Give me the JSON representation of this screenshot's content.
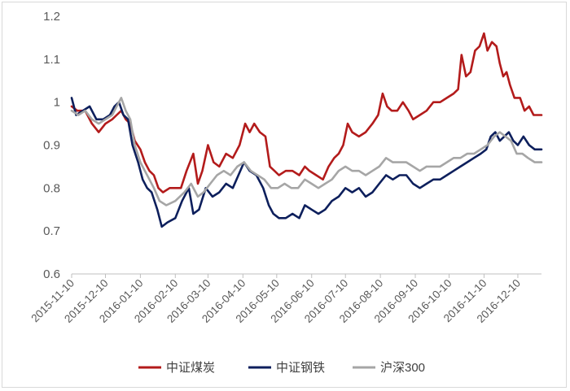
{
  "chart_data": {
    "type": "line",
    "title": "",
    "xlabel": "",
    "ylabel": "",
    "ylim": [
      0.6,
      1.2
    ],
    "yticks": [
      "0.6",
      "0.7",
      "0.8",
      "0.9",
      "1",
      "1.1",
      "1.2"
    ],
    "x_tick_labels": [
      "2015-11-10",
      "2015-12-10",
      "2016-01-10",
      "2016-02-10",
      "2016-03-10",
      "2016-04-10",
      "2016-05-10",
      "2016-06-10",
      "2016-07-10",
      "2016-08-10",
      "2016-09-10",
      "2016-10-10",
      "2016-11-10",
      "2016-12-10"
    ],
    "x_range": [
      "2015-11-10",
      "2016-12-31"
    ],
    "grid": "none",
    "legend_position": "bottom",
    "series": [
      {
        "name": "中证煤炭",
        "color": "#b31b1b",
        "points": [
          [
            "2015-11-10",
            0.99
          ],
          [
            "2015-11-15",
            0.98
          ],
          [
            "2015-11-22",
            0.98
          ],
          [
            "2015-11-28",
            0.95
          ],
          [
            "2015-12-04",
            0.93
          ],
          [
            "2015-12-10",
            0.95
          ],
          [
            "2015-12-16",
            0.96
          ],
          [
            "2015-12-20",
            0.97
          ],
          [
            "2015-12-24",
            0.98
          ],
          [
            "2015-12-28",
            0.96
          ],
          [
            "2016-01-01",
            0.95
          ],
          [
            "2016-01-05",
            0.91
          ],
          [
            "2016-01-10",
            0.89
          ],
          [
            "2016-01-14",
            0.86
          ],
          [
            "2016-01-18",
            0.84
          ],
          [
            "2016-01-22",
            0.83
          ],
          [
            "2016-01-26",
            0.8
          ],
          [
            "2016-01-30",
            0.79
          ],
          [
            "2016-02-05",
            0.8
          ],
          [
            "2016-02-15",
            0.8
          ],
          [
            "2016-02-20",
            0.84
          ],
          [
            "2016-02-26",
            0.88
          ],
          [
            "2016-03-01",
            0.81
          ],
          [
            "2016-03-05",
            0.84
          ],
          [
            "2016-03-10",
            0.9
          ],
          [
            "2016-03-15",
            0.86
          ],
          [
            "2016-03-20",
            0.85
          ],
          [
            "2016-03-26",
            0.88
          ],
          [
            "2016-04-01",
            0.87
          ],
          [
            "2016-04-07",
            0.9
          ],
          [
            "2016-04-12",
            0.95
          ],
          [
            "2016-04-16",
            0.93
          ],
          [
            "2016-04-20",
            0.95
          ],
          [
            "2016-04-25",
            0.93
          ],
          [
            "2016-04-30",
            0.92
          ],
          [
            "2016-05-04",
            0.85
          ],
          [
            "2016-05-08",
            0.84
          ],
          [
            "2016-05-12",
            0.83
          ],
          [
            "2016-05-18",
            0.84
          ],
          [
            "2016-05-24",
            0.84
          ],
          [
            "2016-05-30",
            0.83
          ],
          [
            "2016-06-04",
            0.85
          ],
          [
            "2016-06-08",
            0.84
          ],
          [
            "2016-06-14",
            0.83
          ],
          [
            "2016-06-20",
            0.82
          ],
          [
            "2016-06-25",
            0.85
          ],
          [
            "2016-06-30",
            0.87
          ],
          [
            "2016-07-04",
            0.88
          ],
          [
            "2016-07-08",
            0.9
          ],
          [
            "2016-07-12",
            0.95
          ],
          [
            "2016-07-16",
            0.93
          ],
          [
            "2016-07-22",
            0.92
          ],
          [
            "2016-07-28",
            0.93
          ],
          [
            "2016-08-03",
            0.95
          ],
          [
            "2016-08-08",
            0.97
          ],
          [
            "2016-08-12",
            1.02
          ],
          [
            "2016-08-16",
            0.99
          ],
          [
            "2016-08-20",
            0.98
          ],
          [
            "2016-08-25",
            0.98
          ],
          [
            "2016-08-30",
            1.0
          ],
          [
            "2016-09-04",
            0.98
          ],
          [
            "2016-09-08",
            0.96
          ],
          [
            "2016-09-14",
            0.97
          ],
          [
            "2016-09-20",
            0.98
          ],
          [
            "2016-09-26",
            1.0
          ],
          [
            "2016-10-02",
            1.0
          ],
          [
            "2016-10-08",
            1.01
          ],
          [
            "2016-10-14",
            1.02
          ],
          [
            "2016-10-18",
            1.03
          ],
          [
            "2016-10-21",
            1.11
          ],
          [
            "2016-10-25",
            1.06
          ],
          [
            "2016-10-29",
            1.07
          ],
          [
            "2016-11-02",
            1.12
          ],
          [
            "2016-11-06",
            1.13
          ],
          [
            "2016-11-10",
            1.16
          ],
          [
            "2016-11-13",
            1.12
          ],
          [
            "2016-11-17",
            1.14
          ],
          [
            "2016-11-21",
            1.13
          ],
          [
            "2016-11-24",
            1.09
          ],
          [
            "2016-11-27",
            1.06
          ],
          [
            "2016-11-30",
            1.07
          ],
          [
            "2016-12-03",
            1.04
          ],
          [
            "2016-12-07",
            1.01
          ],
          [
            "2016-12-12",
            1.01
          ],
          [
            "2016-12-16",
            0.98
          ],
          [
            "2016-12-20",
            0.99
          ],
          [
            "2016-12-24",
            0.97
          ],
          [
            "2016-12-31",
            0.97
          ]
        ]
      },
      {
        "name": "中证钢铁",
        "color": "#0d1f5c",
        "points": [
          [
            "2015-11-10",
            1.01
          ],
          [
            "2015-11-14",
            0.97
          ],
          [
            "2015-11-20",
            0.98
          ],
          [
            "2015-11-26",
            0.99
          ],
          [
            "2015-12-02",
            0.96
          ],
          [
            "2015-12-08",
            0.96
          ],
          [
            "2015-12-14",
            0.97
          ],
          [
            "2015-12-18",
            0.99
          ],
          [
            "2015-12-22",
            1.0
          ],
          [
            "2015-12-26",
            0.97
          ],
          [
            "2015-12-30",
            0.96
          ],
          [
            "2016-01-03",
            0.9
          ],
          [
            "2016-01-08",
            0.86
          ],
          [
            "2016-01-12",
            0.82
          ],
          [
            "2016-01-16",
            0.8
          ],
          [
            "2016-01-20",
            0.79
          ],
          [
            "2016-01-25",
            0.75
          ],
          [
            "2016-01-29",
            0.71
          ],
          [
            "2016-02-03",
            0.72
          ],
          [
            "2016-02-10",
            0.73
          ],
          [
            "2016-02-16",
            0.77
          ],
          [
            "2016-02-22",
            0.8
          ],
          [
            "2016-02-26",
            0.74
          ],
          [
            "2016-03-02",
            0.75
          ],
          [
            "2016-03-08",
            0.8
          ],
          [
            "2016-03-14",
            0.78
          ],
          [
            "2016-03-20",
            0.79
          ],
          [
            "2016-03-26",
            0.81
          ],
          [
            "2016-04-01",
            0.8
          ],
          [
            "2016-04-06",
            0.83
          ],
          [
            "2016-04-11",
            0.86
          ],
          [
            "2016-04-16",
            0.84
          ],
          [
            "2016-04-22",
            0.83
          ],
          [
            "2016-04-28",
            0.8
          ],
          [
            "2016-05-03",
            0.76
          ],
          [
            "2016-05-07",
            0.74
          ],
          [
            "2016-05-12",
            0.73
          ],
          [
            "2016-05-18",
            0.73
          ],
          [
            "2016-05-24",
            0.74
          ],
          [
            "2016-05-30",
            0.73
          ],
          [
            "2016-06-04",
            0.76
          ],
          [
            "2016-06-10",
            0.75
          ],
          [
            "2016-06-16",
            0.74
          ],
          [
            "2016-06-22",
            0.75
          ],
          [
            "2016-06-28",
            0.77
          ],
          [
            "2016-07-04",
            0.78
          ],
          [
            "2016-07-10",
            0.8
          ],
          [
            "2016-07-16",
            0.79
          ],
          [
            "2016-07-22",
            0.8
          ],
          [
            "2016-07-28",
            0.78
          ],
          [
            "2016-08-03",
            0.79
          ],
          [
            "2016-08-09",
            0.81
          ],
          [
            "2016-08-15",
            0.83
          ],
          [
            "2016-08-21",
            0.82
          ],
          [
            "2016-08-27",
            0.83
          ],
          [
            "2016-09-02",
            0.83
          ],
          [
            "2016-09-08",
            0.81
          ],
          [
            "2016-09-14",
            0.8
          ],
          [
            "2016-09-20",
            0.81
          ],
          [
            "2016-09-26",
            0.82
          ],
          [
            "2016-10-02",
            0.82
          ],
          [
            "2016-10-08",
            0.83
          ],
          [
            "2016-10-14",
            0.84
          ],
          [
            "2016-10-20",
            0.85
          ],
          [
            "2016-10-26",
            0.86
          ],
          [
            "2016-11-01",
            0.87
          ],
          [
            "2016-11-07",
            0.88
          ],
          [
            "2016-11-12",
            0.89
          ],
          [
            "2016-11-16",
            0.92
          ],
          [
            "2016-11-20",
            0.93
          ],
          [
            "2016-11-24",
            0.91
          ],
          [
            "2016-11-28",
            0.92
          ],
          [
            "2016-12-02",
            0.93
          ],
          [
            "2016-12-06",
            0.91
          ],
          [
            "2016-12-10",
            0.9
          ],
          [
            "2016-12-15",
            0.92
          ],
          [
            "2016-12-20",
            0.9
          ],
          [
            "2016-12-25",
            0.89
          ],
          [
            "2016-12-31",
            0.89
          ]
        ]
      },
      {
        "name": "沪深300",
        "color": "#a6a6a6",
        "points": [
          [
            "2015-11-10",
            0.98
          ],
          [
            "2015-11-16",
            0.97
          ],
          [
            "2015-11-22",
            0.98
          ],
          [
            "2015-11-28",
            0.96
          ],
          [
            "2015-12-04",
            0.95
          ],
          [
            "2015-12-10",
            0.96
          ],
          [
            "2015-12-16",
            0.97
          ],
          [
            "2015-12-20",
            0.99
          ],
          [
            "2015-12-24",
            1.01
          ],
          [
            "2015-12-28",
            0.98
          ],
          [
            "2016-01-01",
            0.96
          ],
          [
            "2016-01-05",
            0.9
          ],
          [
            "2016-01-10",
            0.86
          ],
          [
            "2016-01-14",
            0.84
          ],
          [
            "2016-01-18",
            0.82
          ],
          [
            "2016-01-22",
            0.8
          ],
          [
            "2016-01-27",
            0.77
          ],
          [
            "2016-02-02",
            0.76
          ],
          [
            "2016-02-10",
            0.77
          ],
          [
            "2016-02-18",
            0.79
          ],
          [
            "2016-02-24",
            0.81
          ],
          [
            "2016-03-01",
            0.78
          ],
          [
            "2016-03-06",
            0.79
          ],
          [
            "2016-03-12",
            0.81
          ],
          [
            "2016-03-18",
            0.83
          ],
          [
            "2016-03-24",
            0.84
          ],
          [
            "2016-03-30",
            0.83
          ],
          [
            "2016-04-05",
            0.85
          ],
          [
            "2016-04-11",
            0.86
          ],
          [
            "2016-04-17",
            0.84
          ],
          [
            "2016-04-23",
            0.83
          ],
          [
            "2016-04-29",
            0.82
          ],
          [
            "2016-05-05",
            0.8
          ],
          [
            "2016-05-11",
            0.8
          ],
          [
            "2016-05-17",
            0.81
          ],
          [
            "2016-05-23",
            0.8
          ],
          [
            "2016-05-29",
            0.8
          ],
          [
            "2016-06-04",
            0.82
          ],
          [
            "2016-06-10",
            0.81
          ],
          [
            "2016-06-16",
            0.8
          ],
          [
            "2016-06-22",
            0.81
          ],
          [
            "2016-06-28",
            0.82
          ],
          [
            "2016-07-04",
            0.84
          ],
          [
            "2016-07-10",
            0.85
          ],
          [
            "2016-07-16",
            0.84
          ],
          [
            "2016-07-22",
            0.84
          ],
          [
            "2016-07-28",
            0.83
          ],
          [
            "2016-08-03",
            0.84
          ],
          [
            "2016-08-09",
            0.85
          ],
          [
            "2016-08-15",
            0.87
          ],
          [
            "2016-08-21",
            0.86
          ],
          [
            "2016-08-27",
            0.86
          ],
          [
            "2016-09-02",
            0.86
          ],
          [
            "2016-09-08",
            0.85
          ],
          [
            "2016-09-14",
            0.84
          ],
          [
            "2016-09-20",
            0.85
          ],
          [
            "2016-09-26",
            0.85
          ],
          [
            "2016-10-02",
            0.85
          ],
          [
            "2016-10-08",
            0.86
          ],
          [
            "2016-10-14",
            0.87
          ],
          [
            "2016-10-20",
            0.87
          ],
          [
            "2016-10-26",
            0.88
          ],
          [
            "2016-11-01",
            0.88
          ],
          [
            "2016-11-07",
            0.89
          ],
          [
            "2016-11-13",
            0.9
          ],
          [
            "2016-11-19",
            0.92
          ],
          [
            "2016-11-24",
            0.93
          ],
          [
            "2016-11-29",
            0.92
          ],
          [
            "2016-12-04",
            0.91
          ],
          [
            "2016-12-09",
            0.88
          ],
          [
            "2016-12-14",
            0.88
          ],
          [
            "2016-12-19",
            0.87
          ],
          [
            "2016-12-25",
            0.86
          ],
          [
            "2016-12-31",
            0.86
          ]
        ]
      }
    ]
  }
}
